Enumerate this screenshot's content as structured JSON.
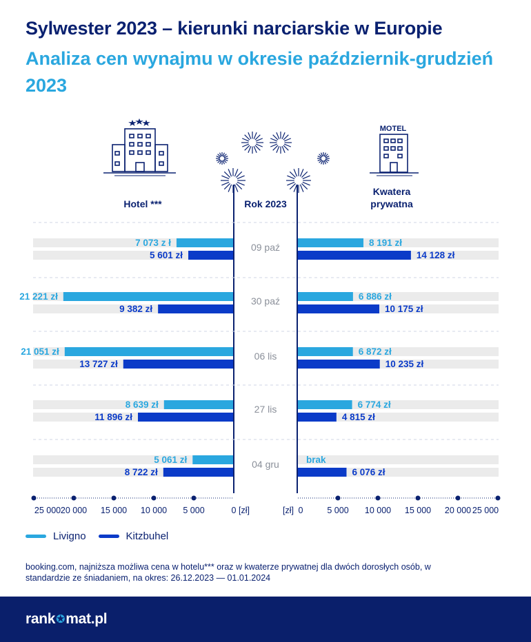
{
  "title": "Sylwester 2023 – kierunki narciarskie w Europie",
  "subtitle": "Analiza cen wynajmu w okresie październik-grudzień 2023",
  "headers": {
    "left": "Hotel ***",
    "center": "Rok 2023",
    "right_line1": "Kwatera",
    "right_line2": "prywatna",
    "motel_sign": "MOTEL"
  },
  "legend": [
    {
      "name": "Livigno",
      "color": "#2aa7df"
    },
    {
      "name": "Kitzbuhel",
      "color": "#0b3bc8"
    }
  ],
  "footnote": "booking.com, najniższa możliwa cena w hotelu*** oraz w kwaterze prywatnej dla dwóch dorosłych osób, w standardzie ze śniadaniem, na okres: 26.12.2023 — 01.01.2024",
  "footer": {
    "logo_left": "rank",
    "logo_right": "mat.pl"
  },
  "chart_data": {
    "type": "bar",
    "orientation": "horizontal-butterfly",
    "categories": [
      "09 paź",
      "30 paź",
      "06 lis",
      "27 lis",
      "04 gru"
    ],
    "axis": {
      "left_ticks": [
        "25 000",
        "20 000",
        "15 000",
        "10 000",
        "5 000",
        "0"
      ],
      "right_ticks": [
        "0",
        "5 000",
        "10 000",
        "15 000",
        "20 000",
        "25 000"
      ],
      "unit": "[zł]",
      "range": [
        0,
        25000
      ]
    },
    "panels": [
      {
        "name": "Hotel ***",
        "side": "left",
        "series": [
          {
            "name": "Livigno",
            "values": [
              7073,
              21221,
              21051,
              8639,
              5061
            ],
            "labels": [
              "7 073 z ł",
              "21 221 zł",
              "21 051 zł",
              "8 639 zł",
              "5 061 zł"
            ]
          },
          {
            "name": "Kitzbuhel",
            "values": [
              5601,
              9382,
              13727,
              11896,
              8722
            ],
            "labels": [
              "5 601 zł",
              "9 382 zł",
              "13 727 zł",
              "11 896 zł",
              "8 722 zł"
            ]
          }
        ]
      },
      {
        "name": "Kwatera prywatna",
        "side": "right",
        "series": [
          {
            "name": "Livigno",
            "values": [
              8191,
              6886,
              6872,
              6774,
              null
            ],
            "labels": [
              "8 191 zł",
              "6 886 zł",
              "6 872 zł",
              "6 774 zł",
              "brak"
            ]
          },
          {
            "name": "Kitzbuhel",
            "values": [
              14128,
              10175,
              10235,
              4815,
              6076
            ],
            "labels": [
              "14 128 zł",
              "10 175 zł",
              "10 235 zł",
              "4 815 zł",
              "6 076 zł"
            ]
          }
        ]
      }
    ]
  }
}
